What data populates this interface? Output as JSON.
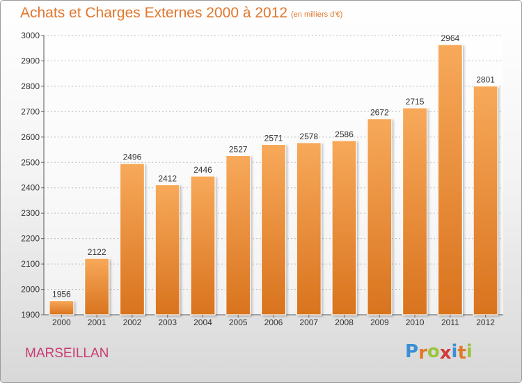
{
  "chart_data": {
    "type": "bar",
    "title": "Achats et Charges Externes 2000 à 2012",
    "subtitle": "(en milliers d'€)",
    "categories": [
      "2000",
      "2001",
      "2002",
      "2003",
      "2004",
      "2005",
      "2006",
      "2007",
      "2008",
      "2009",
      "2010",
      "2011",
      "2012"
    ],
    "values": [
      1956,
      2122,
      2496,
      2412,
      2446,
      2527,
      2571,
      2578,
      2586,
      2672,
      2715,
      2964,
      2801
    ],
    "ylim": [
      1900,
      3000
    ],
    "yticks": [
      "1900",
      "2000",
      "2100",
      "2200",
      "2300",
      "2400",
      "2500",
      "2600",
      "2700",
      "2800",
      "2900",
      "3000"
    ],
    "grid": true,
    "xlabel": "",
    "ylabel": "",
    "bar_color_top": "#f7a95a",
    "bar_color_bottom": "#d9731e"
  },
  "commune": "MARSEILLAN",
  "logo": {
    "text": "Proxiti",
    "letter_colors": [
      "#3a8fd6",
      "#e07a2a",
      "#9bc43a",
      "#d43a3a",
      "#3a8fd6",
      "#e07a2a",
      "#9bc43a"
    ]
  }
}
